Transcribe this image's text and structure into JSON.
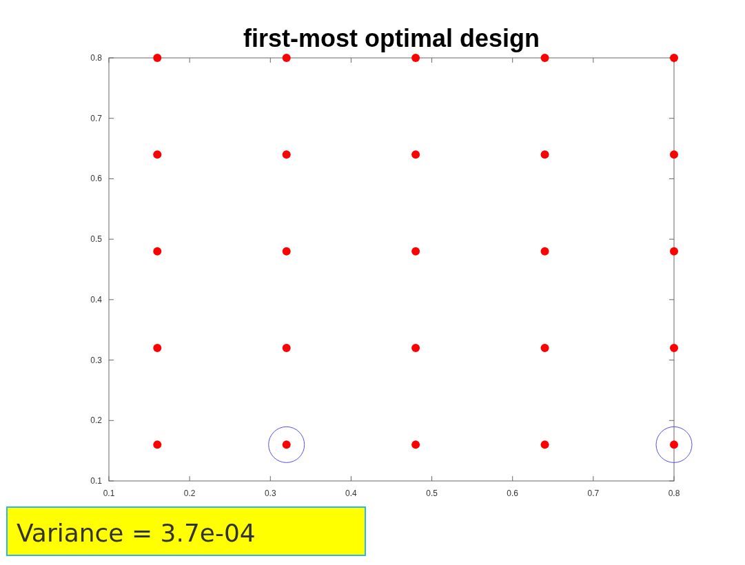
{
  "chart_data": {
    "type": "scatter",
    "title": "first-most optimal design",
    "marker": "circle",
    "grid": false,
    "xlim": [
      0.1,
      0.8
    ],
    "xticks": [
      0.1,
      0.2,
      0.3,
      0.4,
      0.5,
      0.6,
      0.7,
      0.8
    ],
    "ylim": [
      0.1,
      0.8
    ],
    "yticks": [
      0.1,
      0.2,
      0.3,
      0.4,
      0.5,
      0.6,
      0.7,
      0.8
    ],
    "series": [
      {
        "color": "#ff0000",
        "x": [
          0.16,
          0.32,
          0.48,
          0.64,
          0.8,
          0.16,
          0.32,
          0.48,
          0.64,
          0.8,
          0.16,
          0.32,
          0.48,
          0.64,
          0.8,
          0.16,
          0.32,
          0.48,
          0.64,
          0.8,
          0.16,
          0.32,
          0.48,
          0.64,
          0.8
        ],
        "values": [
          0.8,
          0.8,
          0.8,
          0.8,
          0.8,
          0.64,
          0.64,
          0.64,
          0.64,
          0.64,
          0.48,
          0.48,
          0.48,
          0.48,
          0.48,
          0.32,
          0.32,
          0.32,
          0.32,
          0.32,
          0.16,
          0.16,
          0.16,
          0.16,
          0.16
        ]
      },
      {
        "color": "#4d4dff",
        "x": [
          0.32,
          0.8
        ],
        "values": [
          0.16,
          0.16
        ]
      }
    ],
    "annotations": [
      "Variance = 3.7e-04"
    ]
  }
}
